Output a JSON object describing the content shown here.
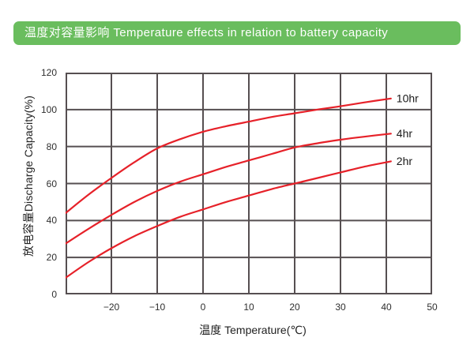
{
  "header": {
    "title": "温度对容量影响 Temperature effects in relation to battery capacity"
  },
  "colors": {
    "banner_green": "#6abd5e",
    "curve_red": "#e62129",
    "grid": "#564f51",
    "tick_text": "#2f2f2f"
  },
  "chart_data": {
    "type": "line",
    "title": "温度对容量影响 Temperature effects in relation to battery capacity",
    "xlabel": "温度 Temperature(℃)",
    "ylabel": "放电容量Discharge Capacity(%)",
    "xlim": [
      -30,
      50
    ],
    "ylim": [
      0,
      120
    ],
    "x_ticks": [
      -20,
      -10,
      0,
      10,
      20,
      30,
      40,
      50
    ],
    "y_ticks": [
      0,
      20,
      40,
      60,
      80,
      100,
      120
    ],
    "grid": true,
    "legend_position": "inline labels at right end of each curve",
    "series": [
      {
        "name": "10hr",
        "x": [
          -30,
          -25,
          -20,
          -15,
          -10,
          -5,
          0,
          5,
          10,
          15,
          20,
          25,
          30,
          35,
          41
        ],
        "values": [
          44,
          54,
          63,
          71.5,
          79,
          84,
          88,
          91,
          93.5,
          96,
          98,
          100,
          101.8,
          103.8,
          106
        ]
      },
      {
        "name": "4hr",
        "x": [
          -30,
          -25,
          -20,
          -15,
          -10,
          -5,
          0,
          5,
          10,
          15,
          20,
          25,
          30,
          35,
          41
        ],
        "values": [
          27.5,
          35.5,
          43,
          50,
          56,
          61,
          65,
          69,
          72.5,
          76,
          79.5,
          81.8,
          83.7,
          85.3,
          87
        ]
      },
      {
        "name": "2hr",
        "x": [
          -30,
          -25,
          -20,
          -15,
          -10,
          -5,
          0,
          5,
          10,
          15,
          20,
          25,
          30,
          35,
          41
        ],
        "values": [
          9,
          17.5,
          25,
          31.5,
          37,
          42,
          46,
          50,
          53.5,
          57,
          60,
          63,
          66,
          69,
          72
        ]
      }
    ]
  }
}
